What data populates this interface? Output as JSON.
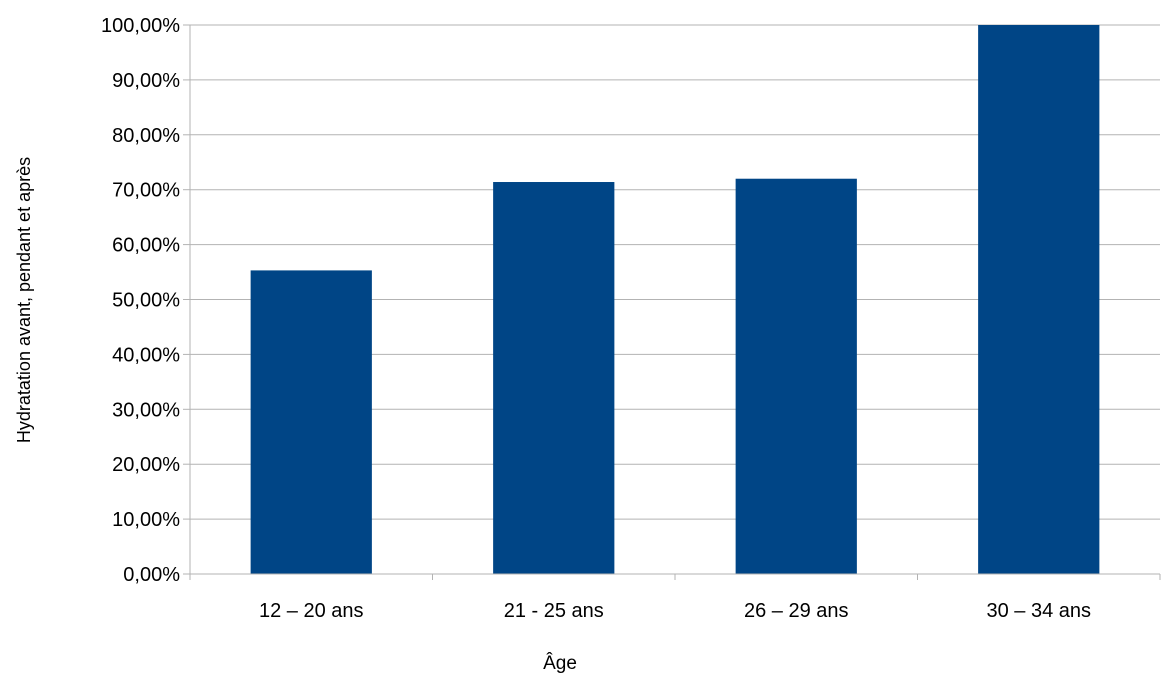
{
  "chart_data": {
    "type": "bar",
    "title": "",
    "xlabel": "Âge",
    "ylabel": "Hydratation avant, pendant et après",
    "categories": [
      "12 – 20 ans",
      "21 - 25 ans",
      "26 – 29 ans",
      "30 – 34 ans"
    ],
    "values": [
      55.3,
      71.4,
      72.0,
      100.0
    ],
    "ylim": [
      0,
      100
    ],
    "ytick_values": [
      0,
      10,
      20,
      30,
      40,
      50,
      60,
      70,
      80,
      90,
      100
    ],
    "ytick_labels": [
      "0,00%",
      "10,00%",
      "20,00%",
      "30,00%",
      "40,00%",
      "50,00%",
      "60,00%",
      "70,00%",
      "80,00%",
      "90,00%",
      "100,00%"
    ],
    "grid": true,
    "legend": "none",
    "colors": {
      "bar": "#004586",
      "grid": "#b3b3b3",
      "axis": "#b3b3b3"
    }
  }
}
